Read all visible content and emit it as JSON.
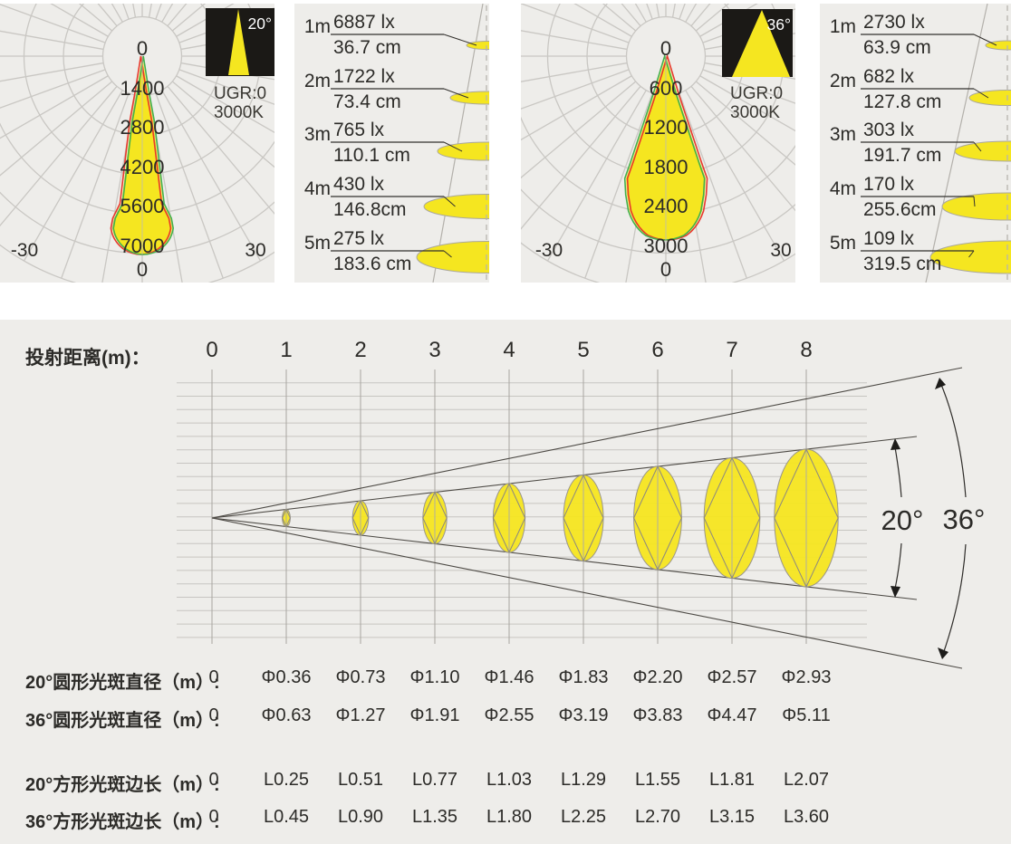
{
  "colors": {
    "panel_bg": "#eeedea",
    "yellow": "#f5e620",
    "red": "#e8392b",
    "green": "#45b04a",
    "grid_gray": "#c9c7c3",
    "dark_text": "#2c2b28",
    "badge_black": "#1b1916"
  },
  "polar_charts": [
    {
      "badge_angle": "20°",
      "ugr": "UGR:0",
      "cct": "3000K",
      "scale_labels": [
        "0",
        "1400",
        "2800",
        "4200",
        "5600",
        "7000"
      ],
      "angle_zero_label": "0",
      "angle_min_label": "-30",
      "angle_max_label": "30"
    },
    {
      "badge_angle": "36°",
      "ugr": "UGR:0",
      "cct": "3000K",
      "scale_labels": [
        "0",
        "600",
        "1200",
        "1800",
        "2400",
        "3000"
      ],
      "angle_zero_label": "0",
      "angle_min_label": "-30",
      "angle_max_label": "30"
    }
  ],
  "lux_tables": [
    {
      "rows": [
        {
          "distance": "1m",
          "lux": "6887 lx",
          "diameter": "36.7 cm"
        },
        {
          "distance": "2m",
          "lux": "1722 lx",
          "diameter": "73.4 cm"
        },
        {
          "distance": "3m",
          "lux": "765 lx",
          "diameter": "110.1 cm"
        },
        {
          "distance": "4m",
          "lux": "430 lx",
          "diameter": "146.8cm"
        },
        {
          "distance": "5m",
          "lux": "275 lx",
          "diameter": "183.6 cm"
        }
      ]
    },
    {
      "rows": [
        {
          "distance": "1m",
          "lux": "2730 lx",
          "diameter": "63.9 cm"
        },
        {
          "distance": "2m",
          "lux": "682 lx",
          "diameter": "127.8 cm"
        },
        {
          "distance": "3m",
          "lux": "303 lx",
          "diameter": "191.7 cm"
        },
        {
          "distance": "4m",
          "lux": "170 lx",
          "diameter": "255.6cm"
        },
        {
          "distance": "5m",
          "lux": "109 lx",
          "diameter": "319.5 cm"
        }
      ]
    }
  ],
  "projection": {
    "header_label": "投射距离(m)：",
    "distances": [
      "0",
      "1",
      "2",
      "3",
      "4",
      "5",
      "6",
      "7",
      "8"
    ],
    "angle_labels": {
      "inner": "20°",
      "outer": "36°"
    },
    "rows": [
      {
        "label": "20°圆形光斑直径（m）:",
        "values": [
          "0",
          "Φ0.36",
          "Φ0.73",
          "Φ1.10",
          "Φ1.46",
          "Φ1.83",
          "Φ2.20",
          "Φ2.57",
          "Φ2.93"
        ]
      },
      {
        "label": "36°圆形光斑直径（m）:",
        "values": [
          "0",
          "Φ0.63",
          "Φ1.27",
          "Φ1.91",
          "Φ2.55",
          "Φ3.19",
          "Φ3.83",
          "Φ4.47",
          "Φ5.11"
        ]
      },
      {
        "label": "20°方形光斑边长（m）:",
        "values": [
          "0",
          "L0.25",
          "L0.51",
          "L0.77",
          "L1.03",
          "L1.29",
          "L1.55",
          "L1.81",
          "L2.07"
        ]
      },
      {
        "label": "36°方形光斑边长（m）:",
        "values": [
          "0",
          "L0.45",
          "L0.90",
          "L1.35",
          "L1.80",
          "L2.25",
          "L2.70",
          "L3.15",
          "L3.60"
        ]
      }
    ]
  },
  "chart_data": [
    {
      "type": "line",
      "subtype": "polar_intensity_distribution",
      "title": "20° beam polar intensity curve",
      "radial_ticks": [
        0,
        1400,
        2800,
        4200,
        5600,
        7000
      ],
      "angle_ticks_deg": [
        -30,
        0,
        30
      ],
      "peak_intensity_at_0deg": 7000,
      "beam_angle_deg": 20,
      "ugr": "UGR:0",
      "cct": "3000K"
    },
    {
      "type": "line",
      "subtype": "polar_intensity_distribution",
      "title": "36° beam polar intensity curve",
      "radial_ticks": [
        0,
        600,
        1200,
        1800,
        2400,
        3000
      ],
      "angle_ticks_deg": [
        -30,
        0,
        30
      ],
      "peak_intensity_at_0deg": 3000,
      "beam_angle_deg": 36,
      "ugr": "UGR:0",
      "cct": "3000K"
    },
    {
      "type": "table",
      "title": "20° beam illuminance and spot diameter vs distance",
      "columns": [
        "distance_m",
        "illuminance_lx",
        "spot_diameter_cm"
      ],
      "rows": [
        [
          1,
          6887,
          36.7
        ],
        [
          2,
          1722,
          73.4
        ],
        [
          3,
          765,
          110.1
        ],
        [
          4,
          430,
          146.8
        ],
        [
          5,
          275,
          183.6
        ]
      ]
    },
    {
      "type": "table",
      "title": "36° beam illuminance and spot diameter vs distance",
      "columns": [
        "distance_m",
        "illuminance_lx",
        "spot_diameter_cm"
      ],
      "rows": [
        [
          1,
          2730,
          63.9
        ],
        [
          2,
          682,
          127.8
        ],
        [
          3,
          303,
          191.7
        ],
        [
          4,
          170,
          255.6
        ],
        [
          5,
          109,
          319.5
        ]
      ]
    },
    {
      "type": "table",
      "title": "投射距离(m) — spot size vs projection distance",
      "x": [
        0,
        1,
        2,
        3,
        4,
        5,
        6,
        7,
        8
      ],
      "series": [
        {
          "name": "20°圆形光斑直径(m)",
          "values": [
            0,
            0.36,
            0.73,
            1.1,
            1.46,
            1.83,
            2.2,
            2.57,
            2.93
          ]
        },
        {
          "name": "36°圆形光斑直径(m)",
          "values": [
            0,
            0.63,
            1.27,
            1.91,
            2.55,
            3.19,
            3.83,
            4.47,
            5.11
          ]
        },
        {
          "name": "20°方形光斑边长(m)",
          "values": [
            0,
            0.25,
            0.51,
            0.77,
            1.03,
            1.29,
            1.55,
            1.81,
            2.07
          ]
        },
        {
          "name": "36°方形光斑边长(m)",
          "values": [
            0,
            0.45,
            0.9,
            1.35,
            1.8,
            2.25,
            2.7,
            3.15,
            3.6
          ]
        }
      ]
    }
  ]
}
